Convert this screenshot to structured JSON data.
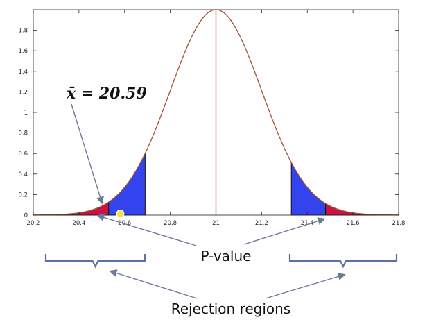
{
  "chart_data": {
    "type": "area",
    "title": "",
    "xlabel": "",
    "ylabel": "",
    "xlim": [
      20.2,
      21.8
    ],
    "ylim": [
      0,
      2
    ],
    "x_ticks": [
      "20.2",
      "20.4",
      "20.6",
      "20.8",
      "21",
      "21.2",
      "21.4",
      "21.6",
      "21.8"
    ],
    "y_ticks": [
      "0",
      "0.2",
      "0.4",
      "0.6",
      "0.8",
      "1",
      "1.2",
      "1.4",
      "1.6",
      "1.8"
    ],
    "distribution": {
      "mean": 21,
      "sd": 0.2,
      "peak": 2.0
    },
    "shaded_regions": {
      "rejection_left_end": 20.53,
      "pvalue_left_end": 20.69,
      "pvalue_right_start": 21.33,
      "rejection_right_start": 21.48
    },
    "observed_mean": 20.59,
    "annotations": {
      "xbar": "x̄ = 20.59",
      "pvalue": "P-value",
      "rejection": "Rejection regions"
    },
    "grid": false
  },
  "colors": {
    "curve": "#a0522d",
    "rejection": "#cc1144",
    "pvalue": "#3344ee",
    "arrow": "#6b7a99",
    "brace": "#5b6fa8",
    "marker": "#f5e04a"
  }
}
